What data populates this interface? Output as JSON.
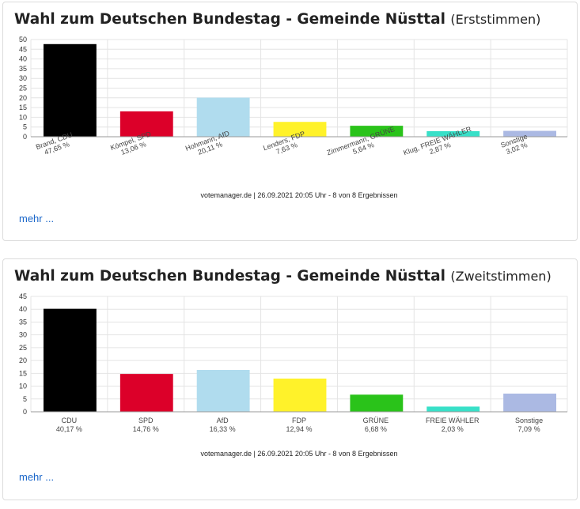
{
  "cards": [
    {
      "title": "Wahl zum Deutschen Bundestag - Gemeinde Nüsttal",
      "subtitle": "(Erststimmen)",
      "source": "votemanager.de | 26.09.2021 20:05 Uhr - 8 von 8 Ergebnissen",
      "more_label": "mehr ..."
    },
    {
      "title": "Wahl zum Deutschen Bundestag - Gemeinde Nüsttal",
      "subtitle": "(Zweitstimmen)",
      "source": "votemanager.de | 26.09.2021 20:05 Uhr - 8 von 8 Ergebnissen",
      "more_label": "mehr ..."
    }
  ],
  "chart_data": [
    {
      "type": "bar",
      "title": "Wahl zum Deutschen Bundestag - Gemeinde Nüsttal (Erststimmen)",
      "categories": [
        "Brand, CDU",
        "Kömpel, SPD",
        "Hohmann, AfD",
        "Lenders, FDP",
        "Zimmermann, GRÜNE",
        "Klug, FREIE WÄHLER",
        "Sonstige"
      ],
      "value_labels": [
        "47,65 %",
        "13,06 %",
        "20,11 %",
        "7,63 %",
        "5,64 %",
        "2,87 %",
        "3,02 %"
      ],
      "values": [
        47.65,
        13.06,
        20.11,
        7.63,
        5.64,
        2.87,
        3.02
      ],
      "colors": [
        "#000000",
        "#dc0029",
        "#b0dcee",
        "#fff22a",
        "#2ac31a",
        "#38e0c8",
        "#abb9e3"
      ],
      "ylim": [
        0,
        50
      ],
      "yticks": [
        0,
        5,
        10,
        15,
        20,
        25,
        30,
        35,
        40,
        45,
        50
      ],
      "category_labels_rotated": true,
      "grid": true,
      "legend": "none"
    },
    {
      "type": "bar",
      "title": "Wahl zum Deutschen Bundestag - Gemeinde Nüsttal (Zweitstimmen)",
      "categories": [
        "CDU",
        "SPD",
        "AfD",
        "FDP",
        "GRÜNE",
        "FREIE WÄHLER",
        "Sonstige"
      ],
      "value_labels": [
        "40,17 %",
        "14,76 %",
        "16,33 %",
        "12,94 %",
        "6,68 %",
        "2,03 %",
        "7,09 %"
      ],
      "values": [
        40.17,
        14.76,
        16.33,
        12.94,
        6.68,
        2.03,
        7.09
      ],
      "colors": [
        "#000000",
        "#dc0029",
        "#b0dcee",
        "#fff22a",
        "#2ac31a",
        "#38e0c8",
        "#abb9e3"
      ],
      "ylim": [
        0,
        45
      ],
      "yticks": [
        0,
        5,
        10,
        15,
        20,
        25,
        30,
        35,
        40,
        45
      ],
      "category_labels_rotated": false,
      "grid": true,
      "legend": "none"
    }
  ]
}
